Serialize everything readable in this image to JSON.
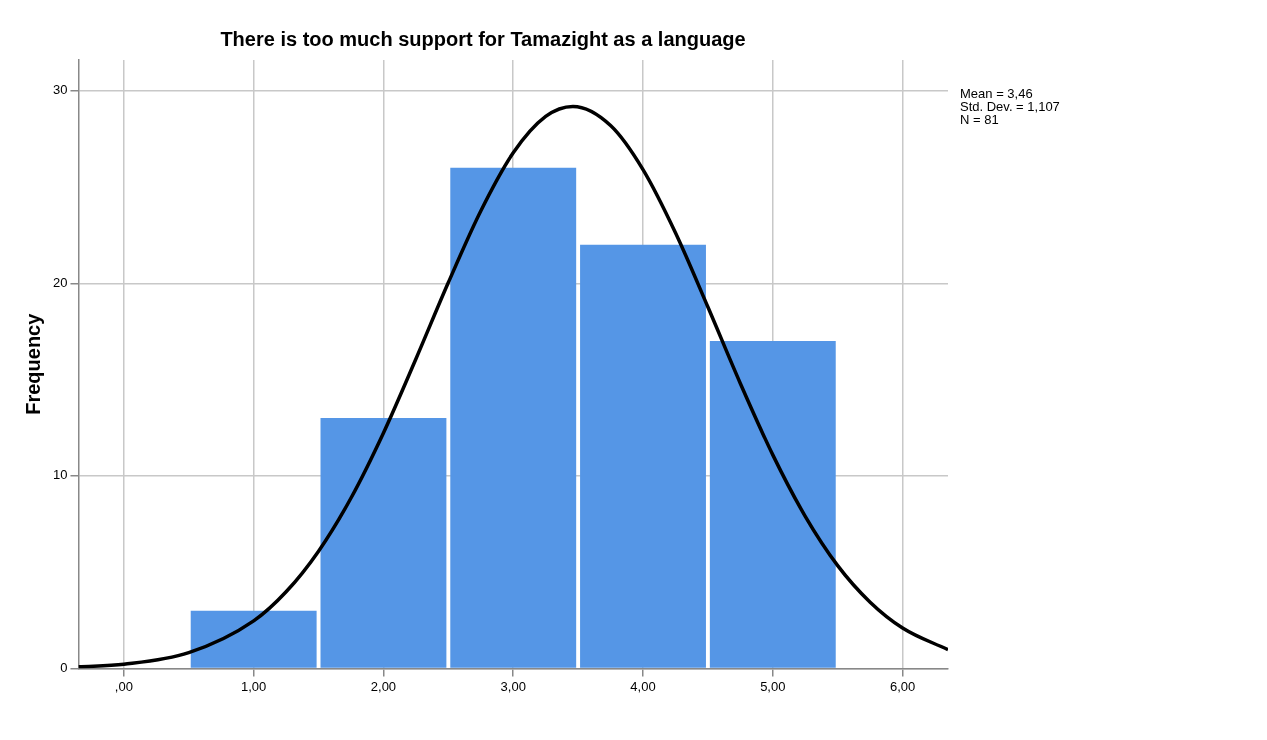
{
  "chart_data": {
    "type": "histogram",
    "title": "There is too much support for Tamazight as a language",
    "ylabel": "Frequency",
    "bins": [
      0.5,
      1.5,
      2.5,
      3.5,
      4.5,
      5.5
    ],
    "values": [
      3,
      13,
      26,
      22,
      17
    ],
    "color": "#5596e6",
    "series": [
      {
        "type": "line",
        "color": "#000000",
        "x": [
          -0.35,
          0,
          0.5,
          1,
          1.25,
          1.5,
          1.75,
          2,
          2.25,
          2.5,
          2.75,
          3,
          3.25,
          3.46,
          3.75,
          4,
          4.25,
          4.5,
          4.75,
          5,
          5.25,
          5.5,
          5.75,
          6,
          6.35
        ],
        "values": [
          0.08,
          0.22,
          0.82,
          2.47,
          3.98,
          6.09,
          8.85,
          12.23,
          16.07,
          20.04,
          23.76,
          26.78,
          28.67,
          29.19,
          28.2,
          25.91,
          22.63,
          18.77,
          14.8,
          11.09,
          7.9,
          5.34,
          3.44,
          2.1,
          0.97
        ]
      }
    ],
    "xlim": [
      -0.35,
      6.35
    ],
    "xticks": [
      {
        "value": 0,
        "label": ",00"
      },
      {
        "value": 1,
        "label": "1,00"
      },
      {
        "value": 2,
        "label": "2,00"
      },
      {
        "value": 3,
        "label": "3,00"
      },
      {
        "value": 4,
        "label": "4,00"
      },
      {
        "value": 5,
        "label": "5,00"
      },
      {
        "value": 6,
        "label": "6,00"
      }
    ],
    "ylim": [
      0,
      31.6
    ],
    "yticks": [
      0,
      10,
      20,
      30
    ],
    "grid": true,
    "annotations": [
      "Mean = 3,46",
      "Std. Dev. = 1,107",
      "N = 81"
    ]
  }
}
